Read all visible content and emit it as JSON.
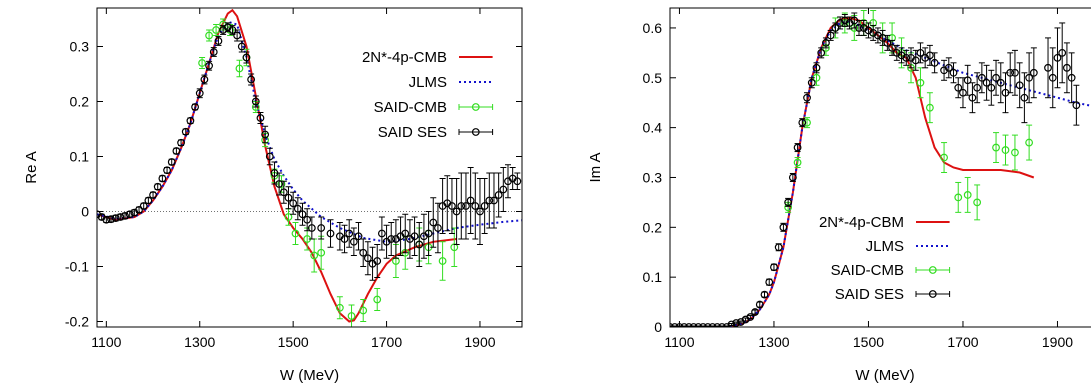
{
  "chart_data": [
    {
      "type": "line",
      "xlabel": "W (MeV)",
      "ylabel": "Re A",
      "xlim": [
        1080,
        1990
      ],
      "ylim": [
        -0.21,
        0.37
      ],
      "xticks": [
        1100,
        1300,
        1500,
        1700,
        1900
      ],
      "yticks": [
        -0.2,
        -0.1,
        0,
        0.1,
        0.2,
        0.3
      ],
      "ytick_labels": [
        "-0.2",
        "-0.1",
        "0",
        "0.1",
        "0.2",
        "0.3"
      ],
      "zero_line": true,
      "legend_position": "top-right",
      "series": [
        {
          "name": "2N*-4p-CMB",
          "style": "line",
          "color": "#dd1111",
          "x": [
            1080,
            1120,
            1160,
            1180,
            1200,
            1220,
            1240,
            1260,
            1280,
            1300,
            1320,
            1340,
            1360,
            1370,
            1380,
            1400,
            1420,
            1440,
            1460,
            1480,
            1500,
            1520,
            1540,
            1560,
            1580,
            1600,
            1620,
            1630,
            1640,
            1660,
            1680,
            1700,
            1720,
            1760,
            1800,
            1850
          ],
          "y": [
            -0.005,
            -0.015,
            -0.01,
            0.0,
            0.02,
            0.045,
            0.075,
            0.115,
            0.16,
            0.215,
            0.27,
            0.325,
            0.36,
            0.366,
            0.355,
            0.3,
            0.21,
            0.12,
            0.045,
            -0.005,
            -0.03,
            -0.05,
            -0.075,
            -0.11,
            -0.15,
            -0.185,
            -0.2,
            -0.198,
            -0.185,
            -0.15,
            -0.12,
            -0.095,
            -0.08,
            -0.065,
            -0.055,
            -0.05
          ]
        },
        {
          "name": "JLMS",
          "style": "dotted",
          "color": "#1111cc",
          "x": [
            1080,
            1120,
            1160,
            1180,
            1200,
            1220,
            1240,
            1260,
            1280,
            1300,
            1320,
            1340,
            1360,
            1380,
            1400,
            1420,
            1440,
            1460,
            1480,
            1500,
            1520,
            1540,
            1560,
            1600,
            1650,
            1700,
            1750,
            1800,
            1850,
            1900,
            1950,
            1990
          ],
          "y": [
            -0.005,
            -0.013,
            -0.01,
            0.0,
            0.02,
            0.045,
            0.075,
            0.115,
            0.16,
            0.215,
            0.27,
            0.32,
            0.345,
            0.34,
            0.28,
            0.2,
            0.14,
            0.095,
            0.065,
            0.04,
            0.02,
            0.005,
            -0.01,
            -0.03,
            -0.048,
            -0.055,
            -0.05,
            -0.04,
            -0.03,
            -0.024,
            -0.019,
            -0.016
          ]
        },
        {
          "name": "SAID-CMB",
          "style": "points",
          "color": "#33dd22",
          "x": [
            1305,
            1320,
            1335,
            1350,
            1365,
            1385,
            1400,
            1420,
            1440,
            1460,
            1475,
            1490,
            1505,
            1530,
            1545,
            1560,
            1600,
            1625,
            1650,
            1680,
            1720,
            1740,
            1770,
            1790,
            1820,
            1845
          ],
          "y": [
            0.27,
            0.32,
            0.33,
            0.34,
            0.33,
            0.26,
            0.28,
            0.19,
            0.13,
            0.065,
            0.05,
            -0.01,
            -0.04,
            -0.05,
            -0.08,
            -0.075,
            -0.175,
            -0.19,
            -0.18,
            -0.16,
            -0.09,
            -0.075,
            -0.06,
            -0.065,
            -0.09,
            -0.065
          ],
          "errors": [
            0.01,
            0.01,
            0.01,
            0.01,
            0.01,
            0.015,
            0.015,
            0.01,
            0.012,
            0.012,
            0.015,
            0.015,
            0.02,
            0.02,
            0.03,
            0.03,
            0.02,
            0.02,
            0.02,
            0.02,
            0.03,
            0.03,
            0.03,
            0.03,
            0.035,
            0.035
          ]
        },
        {
          "name": "SAID SES",
          "style": "points",
          "color": "#000000",
          "x": [
            1080,
            1090,
            1100,
            1110,
            1120,
            1130,
            1140,
            1150,
            1160,
            1170,
            1180,
            1190,
            1200,
            1210,
            1220,
            1230,
            1240,
            1250,
            1260,
            1270,
            1280,
            1290,
            1300,
            1310,
            1320,
            1330,
            1340,
            1350,
            1360,
            1370,
            1380,
            1390,
            1400,
            1410,
            1420,
            1430,
            1440,
            1450,
            1460,
            1470,
            1480,
            1490,
            1500,
            1510,
            1520,
            1530,
            1540,
            1560,
            1580,
            1600,
            1610,
            1620,
            1630,
            1640,
            1650,
            1660,
            1670,
            1680,
            1690,
            1700,
            1710,
            1720,
            1730,
            1740,
            1750,
            1760,
            1770,
            1780,
            1790,
            1800,
            1810,
            1820,
            1830,
            1840,
            1850,
            1860,
            1870,
            1880,
            1890,
            1900,
            1910,
            1920,
            1930,
            1940,
            1950,
            1960,
            1970,
            1980
          ],
          "y": [
            -0.005,
            -0.01,
            -0.015,
            -0.014,
            -0.012,
            -0.01,
            -0.008,
            -0.005,
            -0.002,
            0.003,
            0.01,
            0.02,
            0.03,
            0.045,
            0.06,
            0.075,
            0.09,
            0.11,
            0.125,
            0.145,
            0.165,
            0.19,
            0.215,
            0.24,
            0.265,
            0.29,
            0.31,
            0.33,
            0.335,
            0.33,
            0.32,
            0.3,
            0.28,
            0.24,
            0.2,
            0.17,
            0.14,
            0.1,
            0.07,
            0.05,
            0.035,
            0.025,
            0.015,
            0.005,
            -0.005,
            -0.015,
            -0.03,
            -0.03,
            -0.04,
            -0.045,
            -0.05,
            -0.04,
            -0.055,
            -0.045,
            -0.075,
            -0.085,
            -0.095,
            -0.09,
            -0.04,
            -0.055,
            -0.05,
            -0.05,
            -0.045,
            -0.04,
            -0.05,
            -0.045,
            -0.06,
            -0.045,
            -0.04,
            -0.02,
            -0.03,
            0.01,
            0.015,
            0.01,
            0.0,
            0.01,
            0.01,
            0.02,
            0.01,
            0.0,
            0.01,
            0.02,
            0.02,
            0.03,
            0.04,
            0.055,
            0.06,
            0.055
          ],
          "errors": [
            0.005,
            0.005,
            0.005,
            0.005,
            0.005,
            0.005,
            0.005,
            0.005,
            0.005,
            0.005,
            0.005,
            0.005,
            0.005,
            0.005,
            0.005,
            0.005,
            0.005,
            0.005,
            0.005,
            0.005,
            0.005,
            0.005,
            0.008,
            0.008,
            0.008,
            0.008,
            0.008,
            0.008,
            0.008,
            0.008,
            0.01,
            0.01,
            0.01,
            0.01,
            0.01,
            0.01,
            0.015,
            0.015,
            0.02,
            0.02,
            0.02,
            0.02,
            0.02,
            0.02,
            0.02,
            0.02,
            0.02,
            0.02,
            0.025,
            0.025,
            0.025,
            0.025,
            0.025,
            0.025,
            0.025,
            0.03,
            0.03,
            0.03,
            0.03,
            0.03,
            0.03,
            0.035,
            0.035,
            0.035,
            0.035,
            0.035,
            0.04,
            0.04,
            0.04,
            0.045,
            0.045,
            0.05,
            0.05,
            0.05,
            0.06,
            0.06,
            0.06,
            0.06,
            0.06,
            0.06,
            0.05,
            0.05,
            0.05,
            0.04,
            0.04,
            0.03,
            0.02,
            0.015
          ]
        }
      ]
    },
    {
      "type": "line",
      "xlabel": "W (MeV)",
      "ylabel": "Im A",
      "xlim": [
        1080,
        1990
      ],
      "ylim": [
        0,
        0.64
      ],
      "xticks": [
        1100,
        1300,
        1500,
        1700,
        1900
      ],
      "yticks": [
        0,
        0.1,
        0.2,
        0.3,
        0.4,
        0.5,
        0.6
      ],
      "ytick_labels": [
        "0",
        "0.1",
        "0.2",
        "0.3",
        "0.4",
        "0.5",
        "0.6"
      ],
      "zero_line": true,
      "legend_position": "bottom-left",
      "series": [
        {
          "name": "2N*-4p-CBM",
          "style": "line",
          "color": "#dd1111",
          "x": [
            1080,
            1200,
            1230,
            1250,
            1270,
            1290,
            1300,
            1320,
            1340,
            1360,
            1380,
            1400,
            1420,
            1440,
            1460,
            1480,
            1500,
            1520,
            1540,
            1560,
            1580,
            1600,
            1620,
            1640,
            1660,
            1680,
            1700,
            1740,
            1780,
            1820,
            1850
          ],
          "y": [
            0.0,
            0.0,
            0.005,
            0.015,
            0.035,
            0.065,
            0.09,
            0.16,
            0.27,
            0.4,
            0.5,
            0.56,
            0.6,
            0.617,
            0.62,
            0.615,
            0.6,
            0.585,
            0.57,
            0.55,
            0.54,
            0.5,
            0.42,
            0.36,
            0.33,
            0.32,
            0.315,
            0.315,
            0.315,
            0.31,
            0.3
          ]
        },
        {
          "name": "JLMS",
          "style": "dotted",
          "color": "#1111cc",
          "x": [
            1080,
            1200,
            1230,
            1250,
            1270,
            1290,
            1300,
            1320,
            1340,
            1360,
            1380,
            1400,
            1420,
            1440,
            1460,
            1480,
            1500,
            1540,
            1580,
            1620,
            1660,
            1700,
            1760,
            1820,
            1880,
            1940,
            1990
          ],
          "y": [
            0.0,
            0.0,
            0.005,
            0.015,
            0.035,
            0.065,
            0.09,
            0.16,
            0.27,
            0.4,
            0.5,
            0.56,
            0.595,
            0.61,
            0.612,
            0.605,
            0.595,
            0.575,
            0.555,
            0.54,
            0.525,
            0.51,
            0.495,
            0.48,
            0.465,
            0.45,
            0.44
          ]
        },
        {
          "name": "SAID-CMB",
          "style": "points",
          "color": "#33dd22",
          "x": [
            1330,
            1350,
            1370,
            1390,
            1410,
            1430,
            1450,
            1470,
            1490,
            1510,
            1530,
            1550,
            1570,
            1590,
            1610,
            1630,
            1660,
            1690,
            1710,
            1730,
            1770,
            1790,
            1810,
            1840
          ],
          "y": [
            0.24,
            0.33,
            0.41,
            0.5,
            0.56,
            0.6,
            0.61,
            0.6,
            0.61,
            0.61,
            0.58,
            0.58,
            0.55,
            0.52,
            0.49,
            0.44,
            0.34,
            0.26,
            0.265,
            0.25,
            0.36,
            0.355,
            0.35,
            0.37
          ],
          "errors": [
            0.01,
            0.01,
            0.01,
            0.015,
            0.015,
            0.02,
            0.02,
            0.025,
            0.025,
            0.025,
            0.03,
            0.03,
            0.03,
            0.03,
            0.03,
            0.03,
            0.03,
            0.03,
            0.035,
            0.035,
            0.03,
            0.03,
            0.035,
            0.035
          ]
        },
        {
          "name": "SAID SES",
          "style": "points",
          "color": "#000000",
          "x": [
            1080,
            1090,
            1100,
            1110,
            1120,
            1130,
            1140,
            1150,
            1160,
            1170,
            1180,
            1190,
            1200,
            1210,
            1220,
            1230,
            1240,
            1250,
            1260,
            1270,
            1280,
            1290,
            1300,
            1310,
            1320,
            1330,
            1340,
            1350,
            1360,
            1370,
            1380,
            1390,
            1400,
            1410,
            1420,
            1430,
            1440,
            1450,
            1460,
            1470,
            1480,
            1490,
            1500,
            1510,
            1520,
            1530,
            1540,
            1550,
            1560,
            1570,
            1580,
            1590,
            1600,
            1610,
            1620,
            1630,
            1640,
            1660,
            1670,
            1680,
            1690,
            1700,
            1710,
            1720,
            1730,
            1740,
            1750,
            1760,
            1770,
            1780,
            1790,
            1800,
            1810,
            1820,
            1830,
            1840,
            1850,
            1880,
            1890,
            1900,
            1910,
            1920,
            1930,
            1940
          ],
          "y": [
            0.0,
            0.0,
            0.0,
            0.0,
            0.0,
            0.0,
            0.0,
            0.0,
            0.0,
            0.0,
            0.0,
            0.0,
            0.0,
            0.005,
            0.008,
            0.01,
            0.015,
            0.02,
            0.03,
            0.045,
            0.065,
            0.09,
            0.12,
            0.16,
            0.2,
            0.25,
            0.3,
            0.36,
            0.41,
            0.46,
            0.49,
            0.52,
            0.55,
            0.57,
            0.585,
            0.6,
            0.61,
            0.615,
            0.61,
            0.615,
            0.6,
            0.6,
            0.595,
            0.59,
            0.585,
            0.58,
            0.57,
            0.56,
            0.55,
            0.545,
            0.54,
            0.54,
            0.535,
            0.55,
            0.54,
            0.545,
            0.53,
            0.515,
            0.52,
            0.51,
            0.48,
            0.47,
            0.495,
            0.46,
            0.48,
            0.5,
            0.49,
            0.48,
            0.5,
            0.49,
            0.47,
            0.51,
            0.51,
            0.485,
            0.46,
            0.5,
            0.51,
            0.52,
            0.5,
            0.54,
            0.55,
            0.52,
            0.5,
            0.445
          ],
          "errors": [
            0.002,
            0.002,
            0.002,
            0.002,
            0.002,
            0.002,
            0.002,
            0.002,
            0.002,
            0.002,
            0.002,
            0.002,
            0.002,
            0.002,
            0.002,
            0.002,
            0.003,
            0.003,
            0.004,
            0.005,
            0.005,
            0.006,
            0.006,
            0.007,
            0.008,
            0.008,
            0.008,
            0.008,
            0.008,
            0.01,
            0.01,
            0.01,
            0.01,
            0.01,
            0.01,
            0.01,
            0.012,
            0.012,
            0.012,
            0.015,
            0.015,
            0.015,
            0.015,
            0.015,
            0.015,
            0.015,
            0.015,
            0.015,
            0.015,
            0.015,
            0.015,
            0.02,
            0.02,
            0.02,
            0.02,
            0.02,
            0.02,
            0.02,
            0.02,
            0.02,
            0.02,
            0.03,
            0.03,
            0.03,
            0.03,
            0.03,
            0.035,
            0.035,
            0.035,
            0.04,
            0.04,
            0.04,
            0.045,
            0.045,
            0.05,
            0.05,
            0.05,
            0.06,
            0.06,
            0.06,
            0.06,
            0.05,
            0.05,
            0.04
          ]
        }
      ]
    }
  ]
}
